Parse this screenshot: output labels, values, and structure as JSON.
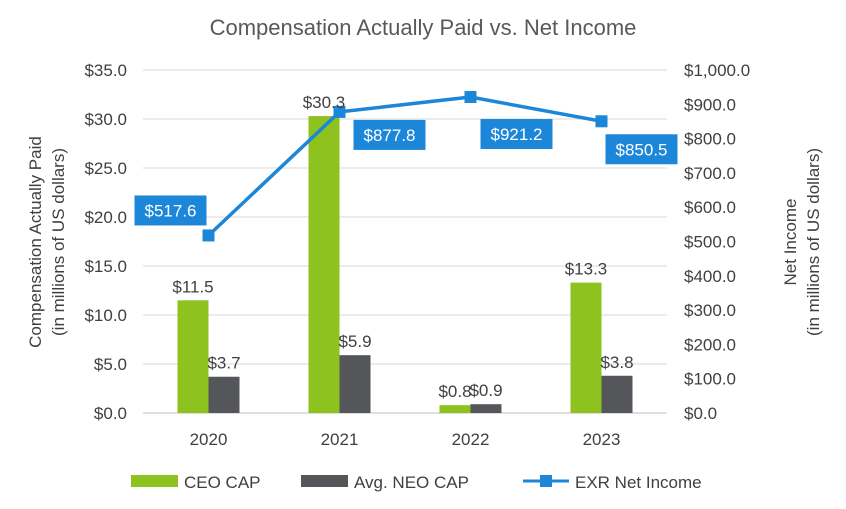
{
  "chart_data": {
    "type": "bar",
    "title": "Compensation Actually Paid vs. Net Income",
    "categories": [
      "2020",
      "2021",
      "2022",
      "2023"
    ],
    "ylabel": [
      "Compensation Actually Paid",
      "(in millions of US dollars)"
    ],
    "y2label": [
      "Net Income",
      "(in millions of US dollars)"
    ],
    "ylim": [
      0,
      35
    ],
    "y2lim": [
      0,
      1000
    ],
    "yticks": [
      "$0.0",
      "$5.0",
      "$10.0",
      "$15.0",
      "$20.0",
      "$25.0",
      "$30.0",
      "$35.0"
    ],
    "y2ticks": [
      "$0.0",
      "$100.0",
      "$200.0",
      "$300.0",
      "$400.0",
      "$500.0",
      "$600.0",
      "$700.0",
      "$800.0",
      "$900.0",
      "$1,000.0"
    ],
    "grid": true,
    "legend_position": "bottom",
    "series": [
      {
        "name": "CEO CAP",
        "type": "bar",
        "axis": "left",
        "color": "#8DC21F",
        "values": [
          11.5,
          30.3,
          0.8,
          13.3
        ],
        "labels": [
          "$11.5",
          "$30.3",
          "$0.8",
          "$13.3"
        ]
      },
      {
        "name": "Avg. NEO CAP",
        "type": "bar",
        "axis": "left",
        "color": "#55565A",
        "values": [
          3.7,
          5.9,
          0.9,
          3.8
        ],
        "labels": [
          "$3.7",
          "$5.9",
          "$0.9",
          "$3.8"
        ]
      },
      {
        "name": "EXR Net Income",
        "type": "line",
        "axis": "right",
        "color": "#1C87D9",
        "values": [
          517.6,
          877.8,
          921.2,
          850.5
        ],
        "labels": [
          "$517.6",
          "$877.8",
          "$921.2",
          "$850.5"
        ]
      }
    ]
  }
}
